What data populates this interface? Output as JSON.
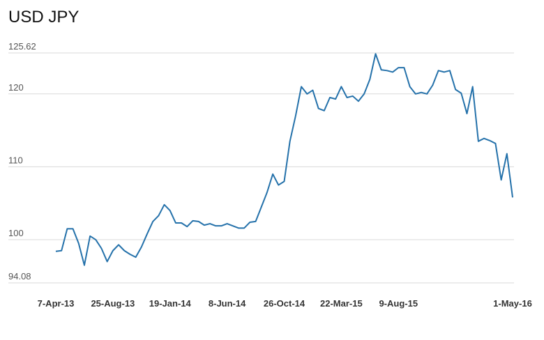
{
  "chart_data": {
    "type": "line",
    "title": "USD JPY",
    "categories": [
      "7-Apr-13",
      null,
      null,
      null,
      null,
      null,
      null,
      null,
      null,
      null,
      "25-Aug-13",
      null,
      null,
      null,
      null,
      null,
      null,
      null,
      null,
      null,
      "19-Jan-14",
      null,
      null,
      null,
      null,
      null,
      null,
      null,
      null,
      null,
      "8-Jun-14",
      null,
      null,
      null,
      null,
      null,
      null,
      null,
      null,
      null,
      "26-Oct-14",
      null,
      null,
      null,
      null,
      null,
      null,
      null,
      null,
      null,
      "22-Mar-15",
      null,
      null,
      null,
      null,
      null,
      null,
      null,
      null,
      null,
      "9-Aug-15",
      null,
      null,
      null,
      null,
      null,
      null,
      null,
      null,
      null,
      null,
      null,
      null,
      null,
      null,
      null,
      null,
      null,
      null,
      null,
      "1-May-16"
    ],
    "values": [
      98.4,
      98.5,
      101.5,
      101.5,
      99.5,
      96.5,
      100.5,
      100,
      98.8,
      97,
      98.5,
      99.3,
      98.5,
      98,
      97.6,
      99,
      100.8,
      102.5,
      103.3,
      104.8,
      104,
      102.3,
      102.3,
      101.8,
      102.6,
      102.5,
      102,
      102.2,
      101.9,
      101.9,
      102.2,
      101.9,
      101.6,
      101.6,
      102.4,
      102.5,
      104.5,
      106.5,
      109,
      107.5,
      108,
      113.5,
      117,
      121,
      120,
      120.5,
      118,
      117.7,
      119.5,
      119.3,
      121,
      119.5,
      119.7,
      119,
      120,
      122,
      125.5,
      123.3,
      123.2,
      123,
      123.6,
      123.6,
      121,
      120,
      120.2,
      120,
      121.2,
      123.2,
      123,
      123.2,
      120.6,
      120.1,
      117.3,
      121,
      113.5,
      113.9,
      113.6,
      113.2,
      108.2,
      111.8,
      105.8
    ],
    "color": "#2471aa",
    "ylim": [
      94.08,
      125.62
    ],
    "yticks": [
      94.08,
      100,
      110,
      120,
      125.62
    ],
    "grid": true
  }
}
